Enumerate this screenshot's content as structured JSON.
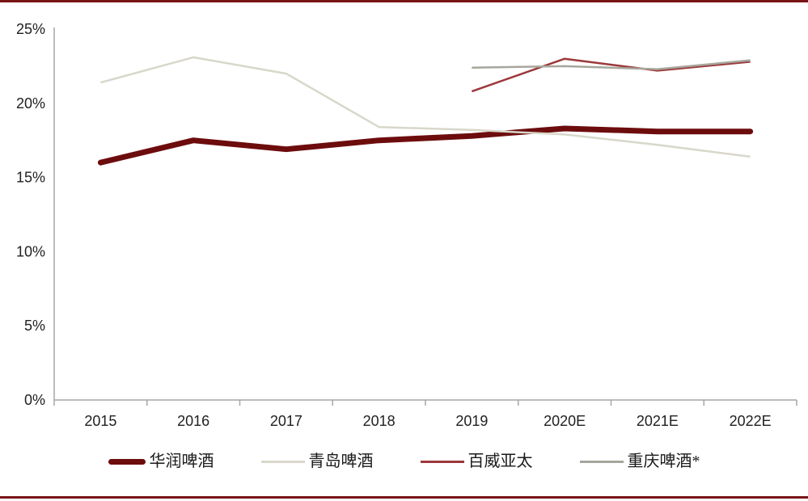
{
  "page": {
    "background": "#ffffff",
    "rule_color": "#7a1517"
  },
  "chart_data": {
    "type": "line",
    "title": "",
    "xlabel": "",
    "ylabel": "",
    "categories": [
      "2015",
      "2016",
      "2017",
      "2018",
      "2019",
      "2020E",
      "2021E",
      "2022E"
    ],
    "y_ticks": [
      "0%",
      "5%",
      "10%",
      "15%",
      "20%",
      "25%"
    ],
    "ylim": [
      0,
      25
    ],
    "y_unit": "%",
    "grid": false,
    "legend_position": "bottom",
    "axis_color": "#a6a6a6",
    "text_color": "#212121",
    "series": [
      {
        "name": "华润啤酒",
        "color": "#6d0c0d",
        "width": 7,
        "values": [
          16.0,
          17.5,
          16.9,
          17.5,
          17.8,
          18.3,
          18.1,
          18.1
        ]
      },
      {
        "name": "青岛啤酒",
        "color": "#d8d7ca",
        "width": 2.5,
        "values": [
          21.4,
          23.1,
          22.0,
          18.4,
          18.2,
          17.9,
          17.2,
          16.4
        ]
      },
      {
        "name": "百威亚太",
        "color": "#9c383b",
        "width": 2.5,
        "values": [
          null,
          null,
          null,
          null,
          20.8,
          23.0,
          22.2,
          22.8
        ]
      },
      {
        "name": "重庆啤酒*",
        "color": "#a7a69d",
        "width": 2.5,
        "values": [
          null,
          null,
          null,
          null,
          22.4,
          22.5,
          22.3,
          22.9
        ]
      }
    ]
  }
}
